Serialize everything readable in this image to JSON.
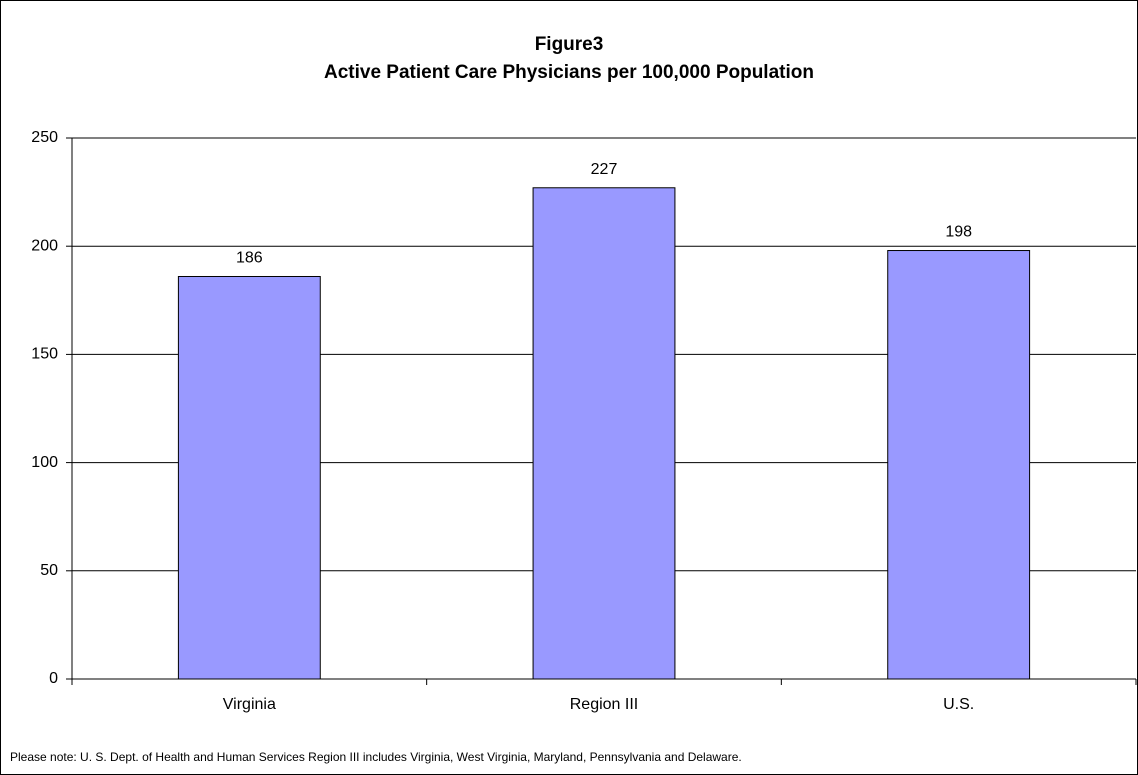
{
  "chart_data": {
    "type": "bar",
    "title": "Figure3",
    "subtitle": "Active Patient Care Physicians per 100,000 Population",
    "categories": [
      "Virginia",
      "Region III",
      "U.S."
    ],
    "values": [
      186,
      227,
      198
    ],
    "color": "#9999ff",
    "ylim": [
      0,
      250
    ],
    "yticks": [
      0,
      50,
      100,
      150,
      200,
      250
    ],
    "grid": true,
    "note": "Please note: U. S. Dept. of Health and Human Services Region III includes Virginia, West Virginia, Maryland, Pennsylvania and Delaware."
  }
}
